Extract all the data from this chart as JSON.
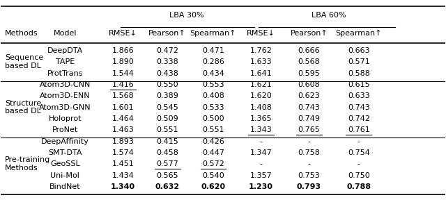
{
  "lba30_header": "LBA 30%",
  "lba60_header": "LBA 60%",
  "col_headers": [
    "Methods",
    "Model",
    "RMSE↓",
    "Pearson↑",
    "Spearman↑",
    "RMSE↓",
    "Pearson↑",
    "Spearman↑"
  ],
  "groups": [
    {
      "group_label": "Sequence\nbased DL",
      "rows": [
        {
          "model": "DeepDTA",
          "lba30": [
            "1.866",
            "0.472",
            "0.471"
          ],
          "lba60": [
            "1.762",
            "0.666",
            "0.663"
          ],
          "underline": [],
          "bold": []
        },
        {
          "model": "TAPE",
          "lba30": [
            "1.890",
            "0.338",
            "0.286"
          ],
          "lba60": [
            "1.633",
            "0.568",
            "0.571"
          ],
          "underline": [],
          "bold": []
        },
        {
          "model": "ProtTrans",
          "lba30": [
            "1.544",
            "0.438",
            "0.434"
          ],
          "lba60": [
            "1.641",
            "0.595",
            "0.588"
          ],
          "underline": [],
          "bold": []
        }
      ]
    },
    {
      "group_label": "Structure\nbased DL",
      "rows": [
        {
          "model": "Atom3D-CNN",
          "lba30": [
            "1.416",
            "0.550",
            "0.553"
          ],
          "lba60": [
            "1.621",
            "0.608",
            "0.615"
          ],
          "underline": [
            0
          ],
          "bold": []
        },
        {
          "model": "Atom3D-ENN",
          "lba30": [
            "1.568",
            "0.389",
            "0.408"
          ],
          "lba60": [
            "1.620",
            "0.623",
            "0.633"
          ],
          "underline": [],
          "bold": []
        },
        {
          "model": "Atom3D-GNN",
          "lba30": [
            "1.601",
            "0.545",
            "0.533"
          ],
          "lba60": [
            "1.408",
            "0.743",
            "0.743"
          ],
          "underline": [],
          "bold": []
        },
        {
          "model": "Holoprot",
          "lba30": [
            "1.464",
            "0.509",
            "0.500"
          ],
          "lba60": [
            "1.365",
            "0.749",
            "0.742"
          ],
          "underline": [],
          "bold": []
        },
        {
          "model": "ProNet",
          "lba30": [
            "1.463",
            "0.551",
            "0.551"
          ],
          "lba60": [
            "1.343",
            "0.765",
            "0.761"
          ],
          "underline": [
            3,
            4,
            5
          ],
          "bold": []
        }
      ]
    },
    {
      "group_label": "Pre-training\nMethods",
      "rows": [
        {
          "model": "DeepAffinity",
          "lba30": [
            "1.893",
            "0.415",
            "0.426"
          ],
          "lba60": [
            "-",
            "-",
            "-"
          ],
          "underline": [],
          "bold": []
        },
        {
          "model": "SMT-DTA",
          "lba30": [
            "1.574",
            "0.458",
            "0.447"
          ],
          "lba60": [
            "1.347",
            "0.758",
            "0.754"
          ],
          "underline": [],
          "bold": []
        },
        {
          "model": "GeoSSL",
          "lba30": [
            "1.451",
            "0.577",
            "0.572"
          ],
          "lba60": [
            "-",
            "-",
            "-"
          ],
          "underline": [
            1,
            2
          ],
          "bold": []
        },
        {
          "model": "Uni-Mol",
          "lba30": [
            "1.434",
            "0.565",
            "0.540"
          ],
          "lba60": [
            "1.357",
            "0.753",
            "0.750"
          ],
          "underline": [],
          "bold": []
        },
        {
          "model": "BindNet",
          "lba30": [
            "1.340",
            "0.632",
            "0.620"
          ],
          "lba60": [
            "1.230",
            "0.793",
            "0.788"
          ],
          "underline": [],
          "bold": [
            0,
            1,
            2,
            3,
            4,
            5
          ]
        }
      ]
    }
  ],
  "bg_color": "#ffffff",
  "text_color": "#000000",
  "font_size": 8.0,
  "header_font_size": 8.0
}
